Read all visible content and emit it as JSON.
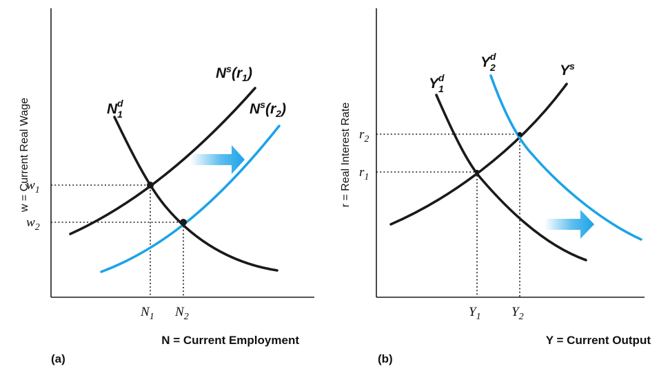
{
  "panel_a": {
    "tag": "(a)",
    "ylabel": "w = Current Real Wage",
    "xlabel": "N = Current Employment",
    "curves": {
      "demand": {
        "base": "N",
        "sub": "1",
        "sup": "d"
      },
      "supply1": {
        "base": "N",
        "sup": "s",
        "arg": "(r",
        "arg_sub": "1",
        "arg_close": ")"
      },
      "supply2": {
        "base": "N",
        "sup": "s",
        "arg": "(r",
        "arg_sub": "2",
        "arg_close": ")"
      }
    },
    "y_ticks": [
      {
        "base": "w",
        "sub": "1"
      },
      {
        "base": "w",
        "sub": "2"
      }
    ],
    "x_ticks": [
      {
        "base": "N",
        "sub": "1"
      },
      {
        "base": "N",
        "sub": "2"
      }
    ]
  },
  "panel_b": {
    "tag": "(b)",
    "ylabel": "r = Real Interest Rate",
    "xlabel": "Y = Current Output",
    "curves": {
      "demand1": {
        "base": "Y",
        "sub": "1",
        "sup": "d"
      },
      "demand2": {
        "base": "Y",
        "sub": "2",
        "sup": "d"
      },
      "supply": {
        "base": "Y",
        "sup": "s"
      }
    },
    "y_ticks": [
      {
        "base": "r",
        "sub": "2"
      },
      {
        "base": "r",
        "sub": "1"
      }
    ],
    "x_ticks": [
      {
        "base": "Y",
        "sub": "1"
      },
      {
        "base": "Y",
        "sub": "2"
      }
    ]
  },
  "colors": {
    "curve": "#1a1a1a",
    "shifted_curve": "#1ba3e8",
    "arrow": "#1ba3e8"
  }
}
